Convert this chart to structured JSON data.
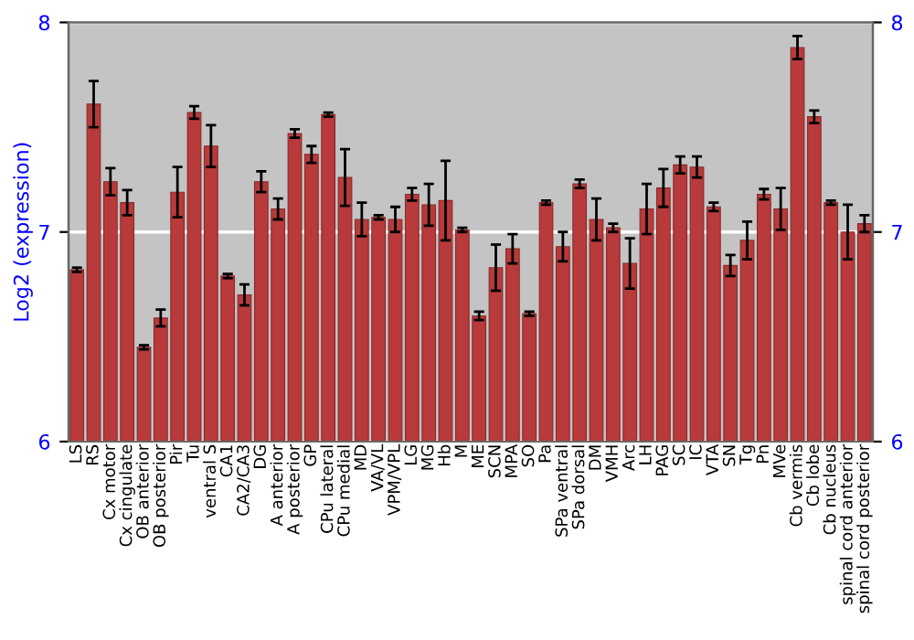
{
  "chart_data": {
    "type": "bar",
    "ylabel": "Log2 (expression)",
    "categories": [
      "LS",
      "RS",
      "Cx motor",
      "Cx cingulate",
      "OB anterior",
      "OB posterior",
      "Pir",
      "Tu",
      "ventral S",
      "CA1",
      "CA2/CA3",
      "DG",
      "A anterior",
      "A posterior",
      "GP",
      "CPu lateral",
      "CPu medial",
      "MD",
      "VA/VL",
      "VPM/VPL",
      "LG",
      "MG",
      "Hb",
      "M",
      "ME",
      "SCN",
      "MPA",
      "SO",
      "Pa",
      "SPa ventral",
      "SPa dorsal",
      "DM",
      "VMH",
      "Arc",
      "LH",
      "PAG",
      "SC",
      "IC",
      "VTA",
      "SN",
      "Tg",
      "Pn",
      "MVe",
      "Cb vermis",
      "Cb lobe",
      "Cb nucleus",
      "spinal cord anterior",
      "spinal cord posterior"
    ],
    "values": [
      6.82,
      7.61,
      7.24,
      7.14,
      6.45,
      6.59,
      7.19,
      7.57,
      7.41,
      6.79,
      6.7,
      7.24,
      7.11,
      7.47,
      7.37,
      7.56,
      7.26,
      7.06,
      7.07,
      7.06,
      7.18,
      7.13,
      7.15,
      7.01,
      6.6,
      6.83,
      6.92,
      6.61,
      7.14,
      6.93,
      7.23,
      7.06,
      7.02,
      6.85,
      7.11,
      7.21,
      7.32,
      7.31,
      7.12,
      6.84,
      6.96,
      7.18,
      7.11,
      7.88,
      7.55,
      7.14,
      7.0,
      7.04
    ],
    "errors": [
      0.01,
      0.11,
      0.065,
      0.06,
      0.01,
      0.04,
      0.12,
      0.03,
      0.1,
      0.01,
      0.05,
      0.05,
      0.05,
      0.02,
      0.04,
      0.01,
      0.135,
      0.08,
      0.01,
      0.06,
      0.03,
      0.1,
      0.19,
      0.01,
      0.02,
      0.11,
      0.07,
      0.01,
      0.01,
      0.07,
      0.02,
      0.1,
      0.02,
      0.12,
      0.12,
      0.09,
      0.04,
      0.05,
      0.02,
      0.05,
      0.09,
      0.025,
      0.1,
      0.055,
      0.03,
      0.01,
      0.13,
      0.04
    ],
    "color": "#b83a3a",
    "ylim": [
      6,
      8
    ],
    "yticks": [
      6,
      7,
      8
    ],
    "y2lim": [
      6,
      8
    ],
    "y2ticks": [
      6,
      7,
      8
    ],
    "grid": "y"
  }
}
